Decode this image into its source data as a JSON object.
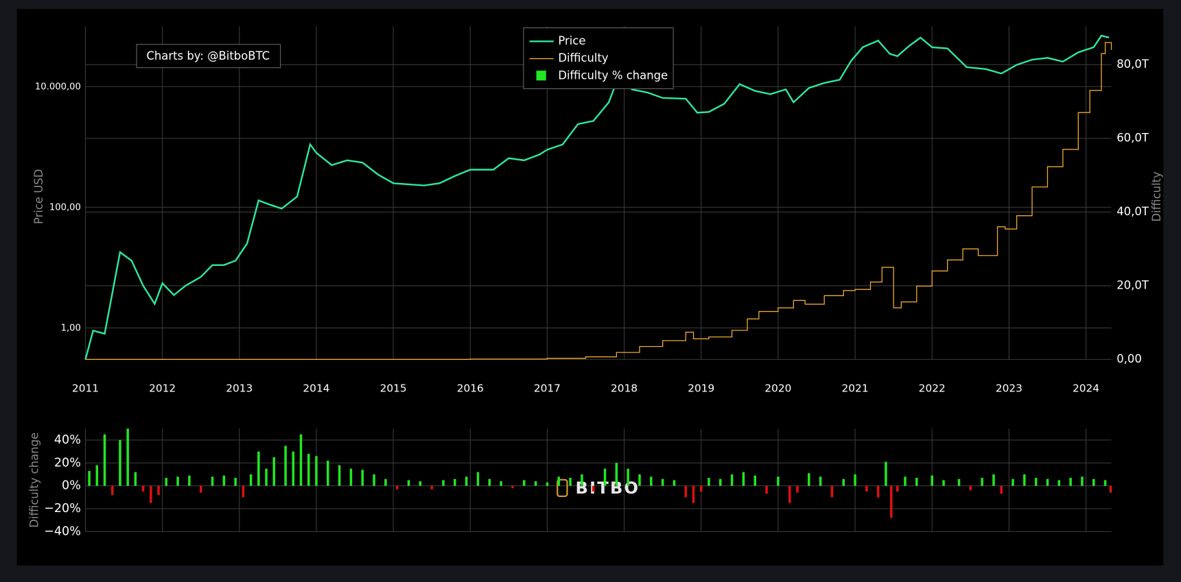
{
  "chart_data": [
    {
      "type": "line",
      "annotation": "Charts by: @BitboBTC",
      "y_label": "Price USD",
      "y2_label": "Difficulty",
      "xlim": [
        2011,
        2024.33
      ],
      "xticks": [
        2011,
        2012,
        2013,
        2014,
        2015,
        2016,
        2017,
        2018,
        2019,
        2020,
        2021,
        2022,
        2023,
        2024
      ],
      "ylim": [
        0.3,
        100000
      ],
      "log_y": true,
      "yticks": [
        {
          "value": 1,
          "label": "1,00"
        },
        {
          "value": 100,
          "label": "100,00"
        },
        {
          "value": 10000,
          "label": "10.000,00"
        }
      ],
      "y2lim": [
        0,
        90.4
      ],
      "y2ticks": [
        {
          "value": 0,
          "label": "0,00"
        },
        {
          "value": 20,
          "label": "20,0T"
        },
        {
          "value": 40,
          "label": "40,0T"
        },
        {
          "value": 60,
          "label": "60,0T"
        },
        {
          "value": 80,
          "label": "80,0T"
        }
      ],
      "grid": true,
      "legend": "top-center",
      "series": [
        {
          "name": "Price",
          "color": "#2fe89c",
          "axis": "y",
          "x": [
            2011.0,
            2011.1,
            2011.25,
            2011.45,
            2011.6,
            2011.75,
            2011.9,
            2012.0,
            2012.15,
            2012.3,
            2012.5,
            2012.65,
            2012.8,
            2012.95,
            2013.1,
            2013.25,
            2013.4,
            2013.55,
            2013.75,
            2013.92,
            2014.0,
            2014.2,
            2014.4,
            2014.6,
            2014.8,
            2015.0,
            2015.2,
            2015.4,
            2015.6,
            2015.8,
            2016.0,
            2016.3,
            2016.5,
            2016.7,
            2016.9,
            2017.0,
            2017.2,
            2017.4,
            2017.6,
            2017.8,
            2017.96,
            2018.1,
            2018.3,
            2018.5,
            2018.8,
            2018.95,
            2019.1,
            2019.3,
            2019.5,
            2019.7,
            2019.9,
            2020.1,
            2020.2,
            2020.4,
            2020.6,
            2020.8,
            2020.95,
            2021.1,
            2021.3,
            2021.45,
            2021.55,
            2021.7,
            2021.85,
            2022.0,
            2022.2,
            2022.45,
            2022.7,
            2022.9,
            2023.1,
            2023.3,
            2023.5,
            2023.7,
            2023.9,
            2024.1,
            2024.2,
            2024.3
          ],
          "values": [
            0.3,
            0.9,
            0.8,
            18,
            13,
            5,
            2.5,
            5.5,
            3.5,
            5,
            7,
            11,
            11,
            13,
            25,
            130,
            110,
            95,
            150,
            1100,
            800,
            500,
            600,
            550,
            350,
            250,
            240,
            230,
            250,
            330,
            420,
            420,
            650,
            600,
            750,
            900,
            1100,
            2400,
            2700,
            5500,
            19000,
            9000,
            8000,
            6500,
            6300,
            3700,
            3800,
            5200,
            11000,
            8500,
            7500,
            9000,
            5500,
            9500,
            11500,
            13000,
            27000,
            45000,
            58000,
            35000,
            32000,
            47000,
            65000,
            45000,
            43000,
            21000,
            19500,
            16500,
            23000,
            28000,
            30000,
            26000,
            37000,
            45000,
            70000,
            65000
          ]
        },
        {
          "name": "Difficulty",
          "color": "#f0a830",
          "axis": "y2",
          "step": true,
          "x": [
            2011,
            2016,
            2017,
            2017.5,
            2017.9,
            2018.2,
            2018.5,
            2018.8,
            2018.9,
            2019.1,
            2019.4,
            2019.6,
            2019.75,
            2020.0,
            2020.2,
            2020.35,
            2020.6,
            2020.85,
            2021.0,
            2021.2,
            2021.35,
            2021.5,
            2021.6,
            2021.8,
            2022.0,
            2022.2,
            2022.4,
            2022.6,
            2022.85,
            2022.95,
            2023.1,
            2023.3,
            2023.5,
            2023.7,
            2023.9,
            2024.05,
            2024.2,
            2024.25,
            2024.33
          ],
          "values": [
            0,
            0.1,
            0.3,
            0.7,
            1.9,
            3.5,
            5.1,
            7.4,
            5.6,
            6.1,
            7.9,
            11,
            13,
            14,
            16,
            15,
            17.3,
            18.7,
            19,
            21,
            25,
            14,
            15.6,
            19.9,
            24,
            27,
            30,
            28.2,
            36,
            35.4,
            39,
            46.8,
            52.3,
            57,
            67,
            73,
            83,
            86,
            84
          ]
        }
      ]
    },
    {
      "type": "bar",
      "y_label": "Difficulty change",
      "watermark": "BITBO",
      "xlim": [
        2011,
        2024.33
      ],
      "xticks": [
        2011,
        2012,
        2013,
        2014,
        2015,
        2016,
        2017,
        2018,
        2019,
        2020,
        2021,
        2022,
        2023,
        2024
      ],
      "ylim": [
        -40,
        50
      ],
      "yticks": [
        {
          "value": -40,
          "label": "−40%"
        },
        {
          "value": -20,
          "label": "−20%"
        },
        {
          "value": 0,
          "label": "0%"
        },
        {
          "value": 20,
          "label": "20%"
        },
        {
          "value": 40,
          "label": "40%"
        }
      ],
      "grid": true,
      "series": [
        {
          "name": "Difficulty % change",
          "color": "#22e622",
          "negative_color": "#e01010",
          "x": [
            2011.05,
            2011.15,
            2011.25,
            2011.35,
            2011.45,
            2011.55,
            2011.65,
            2011.75,
            2011.85,
            2011.95,
            2012.05,
            2012.2,
            2012.35,
            2012.5,
            2012.65,
            2012.8,
            2012.95,
            2013.05,
            2013.15,
            2013.25,
            2013.35,
            2013.45,
            2013.6,
            2013.7,
            2013.8,
            2013.9,
            2014.0,
            2014.15,
            2014.3,
            2014.45,
            2014.6,
            2014.75,
            2014.9,
            2015.05,
            2015.2,
            2015.35,
            2015.5,
            2015.65,
            2015.8,
            2015.95,
            2016.1,
            2016.25,
            2016.4,
            2016.55,
            2016.7,
            2016.85,
            2017.0,
            2017.15,
            2017.3,
            2017.45,
            2017.6,
            2017.75,
            2017.9,
            2018.05,
            2018.2,
            2018.35,
            2018.5,
            2018.65,
            2018.8,
            2018.9,
            2019.0,
            2019.1,
            2019.25,
            2019.4,
            2019.55,
            2019.7,
            2019.85,
            2020.0,
            2020.15,
            2020.25,
            2020.4,
            2020.55,
            2020.7,
            2020.85,
            2021.0,
            2021.15,
            2021.3,
            2021.4,
            2021.47,
            2021.55,
            2021.65,
            2021.8,
            2022.0,
            2022.15,
            2022.35,
            2022.5,
            2022.65,
            2022.8,
            2022.9,
            2023.05,
            2023.2,
            2023.35,
            2023.5,
            2023.65,
            2023.8,
            2023.95,
            2024.1,
            2024.25,
            2024.32
          ],
          "values": [
            13,
            18,
            45,
            -8,
            40,
            50,
            12,
            -5,
            -15,
            -8,
            7,
            8,
            9,
            -6,
            8,
            9,
            7,
            -10,
            10,
            30,
            15,
            25,
            35,
            30,
            45,
            28,
            26,
            22,
            18,
            15,
            14,
            10,
            6,
            -3,
            5,
            4,
            -3,
            5,
            6,
            8,
            12,
            6,
            4,
            -2,
            5,
            4,
            3,
            8,
            7,
            10,
            -5,
            15,
            20,
            15,
            10,
            8,
            6,
            5,
            -10,
            -15,
            -5,
            7,
            6,
            10,
            12,
            9,
            -7,
            8,
            -15,
            -6,
            11,
            8,
            -10,
            6,
            10,
            -5,
            -10,
            21,
            -28,
            -5,
            8,
            7,
            9,
            5,
            6,
            -4,
            7,
            10,
            -7,
            6,
            10,
            7,
            6,
            5,
            7,
            8,
            6,
            5,
            -6
          ]
        }
      ]
    }
  ]
}
